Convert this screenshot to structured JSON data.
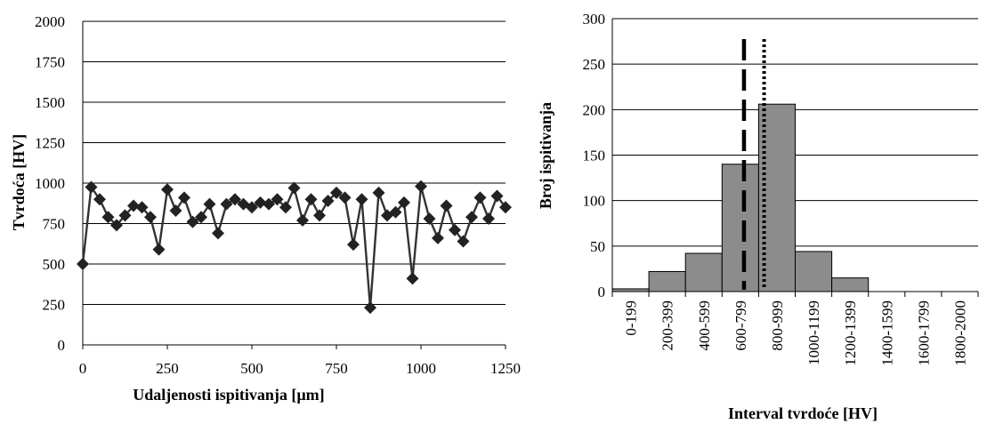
{
  "chart_data": [
    {
      "type": "line",
      "xlabel": "Udaljenosti ispitivanja [µm]",
      "ylabel": "Tvrdoća [HV]",
      "xlim": [
        0,
        1250
      ],
      "ylim": [
        0,
        2000
      ],
      "xticks": [
        "0",
        "250",
        "500",
        "750",
        "1000",
        "1250"
      ],
      "yticks": [
        "0",
        "250",
        "500",
        "750",
        "1000",
        "1250",
        "1500",
        "1750",
        "2000"
      ],
      "grid": "horizontal",
      "marker": "diamond",
      "line_color": "#333333",
      "marker_color": "#222222",
      "series": [
        {
          "x": [
            0,
            25,
            50,
            75,
            100,
            125,
            150,
            175,
            200,
            225,
            250,
            275,
            300,
            325,
            350,
            375,
            400,
            425,
            450,
            475,
            500,
            525,
            550,
            575,
            600,
            625,
            650,
            675,
            700,
            725,
            750,
            775,
            800,
            825,
            850,
            875,
            900,
            925,
            950,
            975,
            1000,
            1025,
            1050,
            1075,
            1100,
            1125,
            1150,
            1175,
            1200,
            1225,
            1250
          ],
          "values": [
            500,
            975,
            900,
            790,
            740,
            800,
            860,
            850,
            790,
            590,
            960,
            830,
            910,
            760,
            790,
            870,
            690,
            870,
            900,
            870,
            850,
            880,
            870,
            900,
            850,
            970,
            770,
            900,
            800,
            890,
            940,
            910,
            620,
            900,
            230,
            940,
            800,
            820,
            880,
            410,
            980,
            780,
            660,
            860,
            710,
            640,
            790,
            910,
            780,
            920,
            850
          ]
        }
      ]
    },
    {
      "type": "bar",
      "xlabel": "Interval tvrdoće [HV]",
      "ylabel": "Broj ispitivanja",
      "ylim": [
        0,
        300
      ],
      "yticks": [
        "0",
        "50",
        "100",
        "150",
        "200",
        "250",
        "300"
      ],
      "grid": "horizontal",
      "bar_color": "#8c8c8c",
      "categories": [
        "0-199",
        "200-399",
        "400-599",
        "600-799",
        "800-999",
        "1000-1199",
        "1200-1399",
        "1400-1599",
        "1600-1799",
        "1800-2000"
      ],
      "values": [
        3,
        22,
        42,
        140,
        206,
        44,
        15,
        0,
        0,
        0
      ],
      "reference_lines": [
        {
          "style": "dashed",
          "x_hv": 720
        },
        {
          "style": "dotted",
          "x_hv": 830
        }
      ]
    }
  ]
}
